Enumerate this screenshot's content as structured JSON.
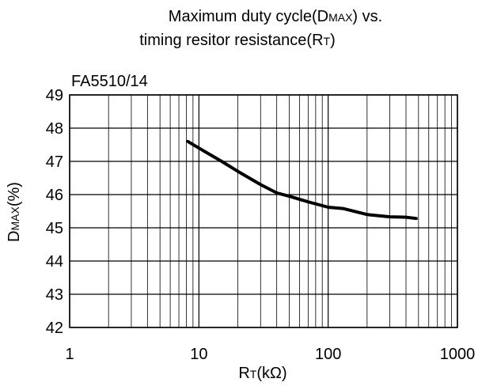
{
  "chart_data": {
    "type": "line",
    "title_lines": [
      {
        "main": "Maximum duty cycle(D",
        "caps": "MAX",
        "tail": ") vs."
      },
      {
        "main": "timing resitor resistance(R",
        "caps": "T",
        "tail": ")"
      }
    ],
    "subtitle": "FA5510/14",
    "xlabel": {
      "main": "R",
      "caps": "T",
      "tail": "(kΩ)"
    },
    "ylabel": {
      "main": "D",
      "caps": "MAX",
      "tail": "(%)"
    },
    "x_scale": "log",
    "xlim": [
      1,
      1000
    ],
    "ylim": [
      42,
      49
    ],
    "x_ticks": [
      1,
      10,
      100,
      1000
    ],
    "x_tick_labels": [
      "1",
      "10",
      "100",
      "1000"
    ],
    "y_ticks": [
      42,
      43,
      44,
      45,
      46,
      47,
      48,
      49
    ],
    "y_tick_labels": [
      "42",
      "43",
      "44",
      "45",
      "46",
      "47",
      "48",
      "49"
    ],
    "grid": true,
    "series": [
      {
        "x": [
          8.2,
          10,
          15,
          20,
          30,
          40,
          50,
          70,
          100,
          130,
          200,
          300,
          400,
          480
        ],
        "y": [
          47.6,
          47.4,
          47.0,
          46.7,
          46.3,
          46.05,
          45.95,
          45.78,
          45.62,
          45.58,
          45.4,
          45.33,
          45.32,
          45.28
        ]
      }
    ],
    "colors": {
      "line": "#000000",
      "grid": "#000000",
      "background": "#ffffff"
    }
  }
}
